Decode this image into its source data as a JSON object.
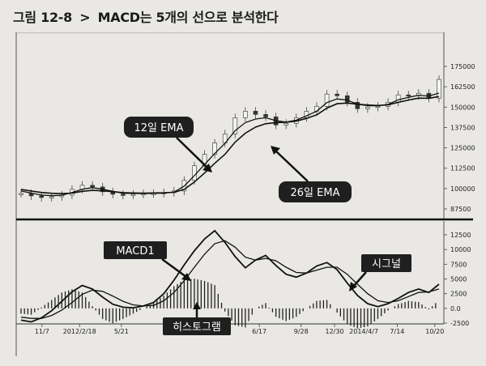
{
  "figure": {
    "title_prefix": "그림 12-8",
    "title_arrow": ">",
    "title_text": "MACD는 5개의 선으로 분석한다"
  },
  "chart_data": [
    {
      "type": "line",
      "panel": "price",
      "y_ticks": [
        "175000",
        "162500",
        "150000",
        "137500",
        "125000",
        "112500",
        "100000",
        "87500"
      ],
      "ylim": [
        87500,
        175000
      ],
      "grid": false,
      "price_ohlc_note": "candles drawn around close series",
      "series": [
        {
          "name": "12일 EMA",
          "values": [
            98500,
            97200,
            96000,
            95600,
            95900,
            97600,
            99600,
            100600,
            99600,
            98300,
            97100,
            97000,
            96900,
            97000,
            97200,
            97800,
            101500,
            108000,
            114800,
            121500,
            127700,
            135600,
            140500,
            142700,
            143500,
            141700,
            140800,
            142000,
            144600,
            147500,
            152800,
            155000,
            154300,
            151800,
            150900,
            150800,
            151700,
            154500,
            156000,
            157300,
            156800,
            158600
          ]
        },
        {
          "name": "26일 EMA",
          "values": [
            99500,
            98500,
            97600,
            97100,
            96900,
            97200,
            98300,
            98900,
            98600,
            98100,
            97500,
            97300,
            97200,
            97300,
            97400,
            97700,
            99500,
            104000,
            109500,
            115500,
            121000,
            128500,
            134000,
            137700,
            139800,
            140500,
            140700,
            141400,
            143100,
            145200,
            149400,
            152100,
            152500,
            151800,
            151300,
            151000,
            151400,
            153000,
            154300,
            155500,
            155400,
            156500
          ]
        }
      ],
      "close": [
        97000,
        95500,
        94500,
        95000,
        96000,
        99500,
        102000,
        101000,
        98000,
        96500,
        96000,
        96500,
        96800,
        97000,
        97500,
        98500,
        105000,
        114000,
        121000,
        128000,
        133500,
        143500,
        147500,
        145500,
        144000,
        139000,
        140000,
        143500,
        147500,
        150500,
        158000,
        157000,
        153000,
        149000,
        150000,
        150500,
        153000,
        157500,
        157000,
        158500,
        155500,
        167000
      ]
    },
    {
      "type": "line",
      "panel": "macd",
      "y_ticks": [
        "12500",
        "10000",
        "7500",
        "5000",
        "2500",
        "0.0",
        "-2500"
      ],
      "ylim": [
        -2500,
        12500
      ],
      "x_tick_labels": [
        "11/7",
        "2012/2/18",
        "5/21",
        "6/17",
        "9/28",
        "12/30",
        "2014/4/7",
        "7/14",
        "10/20"
      ],
      "series": [
        {
          "name": "MACD1",
          "values": [
            -2000,
            -2300,
            -1600,
            -400,
            1200,
            2800,
            3900,
            3300,
            1900,
            700,
            200,
            100,
            400,
            1000,
            2500,
            4800,
            7400,
            9800,
            11800,
            13200,
            11200,
            8800,
            6900,
            8200,
            9000,
            7300,
            5800,
            5300,
            6000,
            7200,
            7800,
            6600,
            4300,
            2200,
            800,
            300,
            800,
            1700,
            2700,
            3300,
            2700,
            4100
          ]
        },
        {
          "name": "시그널",
          "values": [
            -1500,
            -1700,
            -1700,
            -1200,
            -300,
            1000,
            2400,
            3100,
            2900,
            2100,
            1200,
            600,
            400,
            500,
            1300,
            2700,
            4700,
            7000,
            9200,
            11000,
            11500,
            10400,
            8700,
            8200,
            8500,
            8100,
            7000,
            6100,
            6000,
            6500,
            7000,
            7000,
            5800,
            4100,
            2500,
            1300,
            1000,
            1300,
            2000,
            2700,
            2800,
            3300
          ]
        }
      ],
      "histogram_label": "히스토그램"
    }
  ],
  "callouts": {
    "ema12": "12일 EMA",
    "ema26": "26일 EMA",
    "macd1": "MACD1",
    "signal": "시그널",
    "histogram": "히스토그램"
  }
}
